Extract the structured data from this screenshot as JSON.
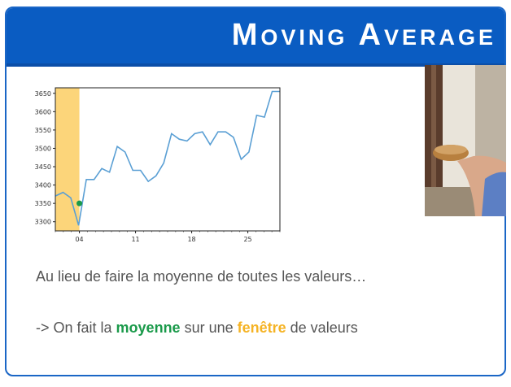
{
  "slide": {
    "title": "Moving Average",
    "line1": "Au lieu de faire la moyenne de toutes les valeurs…",
    "line2_prefix": "-> On fait la ",
    "line2_green": "moyenne",
    "line2_middle": " sur une ",
    "line2_orange": "fenêtre",
    "line2_suffix": " de valeurs"
  },
  "colors": {
    "title_bar": "#0a5cc2",
    "line": "#5a9fd4",
    "window": "#fcd57a",
    "dot": "#1a9a4a",
    "green_text": "#1a9a4a",
    "orange_text": "#f5b324"
  },
  "chart_data": {
    "type": "line",
    "x_ticks": [
      "04",
      "11",
      "18",
      "25"
    ],
    "y_ticks": [
      3300,
      3350,
      3400,
      3450,
      3500,
      3550,
      3600,
      3650
    ],
    "ylim": [
      3275,
      3665
    ],
    "x_range": [
      0,
      28
    ],
    "x_tick_positions": [
      3,
      10,
      17,
      24
    ],
    "values": [
      3370,
      3380,
      3365,
      3290,
      3415,
      3415,
      3445,
      3435,
      3505,
      3490,
      3440,
      3440,
      3410,
      3425,
      3460,
      3540,
      3525,
      3520,
      3540,
      3545,
      3510,
      3545,
      3545,
      3530,
      3470,
      3490,
      3590,
      3585,
      3655,
      3655
    ],
    "highlight_window": {
      "x_start": 0,
      "x_end": 3
    },
    "average_point": {
      "x": 3,
      "y": 3350
    },
    "grid": false
  },
  "icons": {
    "video": "presenter-video"
  }
}
